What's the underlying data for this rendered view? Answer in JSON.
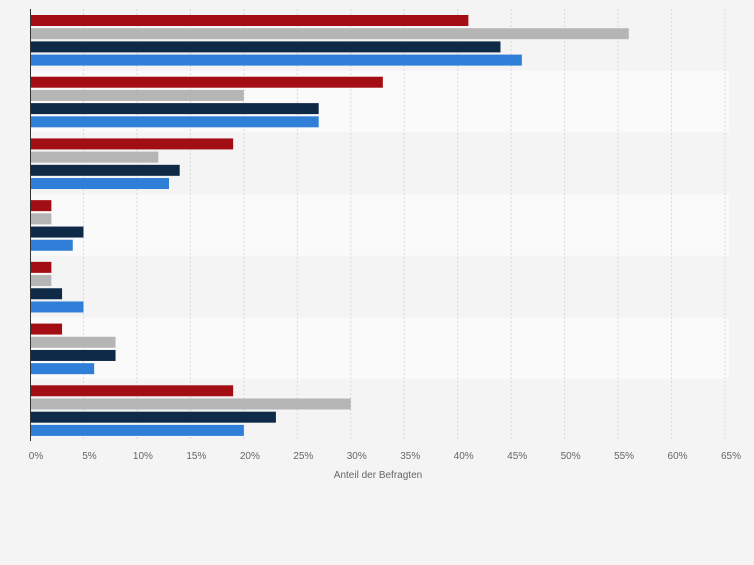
{
  "chart_data": {
    "type": "bar",
    "orientation": "horizontal",
    "categories": [
      "",
      "",
      "",
      "",
      "",
      "",
      ""
    ],
    "series": [
      {
        "color": "#a30e15",
        "values": [
          41,
          33,
          19,
          2,
          2,
          3,
          19
        ]
      },
      {
        "color": "#b5b5b5",
        "values": [
          56,
          20,
          12,
          2,
          2,
          8,
          30
        ]
      },
      {
        "color": "#0f2a47",
        "values": [
          44,
          27,
          14,
          5,
          3,
          8,
          23
        ]
      },
      {
        "color": "#2f7ed8",
        "values": [
          46,
          27,
          13,
          4,
          5,
          6,
          20
        ]
      }
    ],
    "xlabel": "Anteil der Befragten",
    "ylabel": "",
    "title": "",
    "xlim": [
      0,
      65
    ],
    "tick_values": [
      0,
      5,
      10,
      15,
      20,
      25,
      30,
      35,
      40,
      45,
      50,
      55,
      60,
      65
    ],
    "tick_labels": [
      "0%",
      "5%",
      "10%",
      "15%",
      "20%",
      "25%",
      "30%",
      "35%",
      "40%",
      "45%",
      "50%",
      "55%",
      "60%",
      "65%"
    ],
    "grid": true,
    "legend": "none",
    "band_colors": [
      "#f4f4f4",
      "#fafafa"
    ],
    "axis_color": "#333333",
    "grid_color": "#d9d9d9"
  }
}
